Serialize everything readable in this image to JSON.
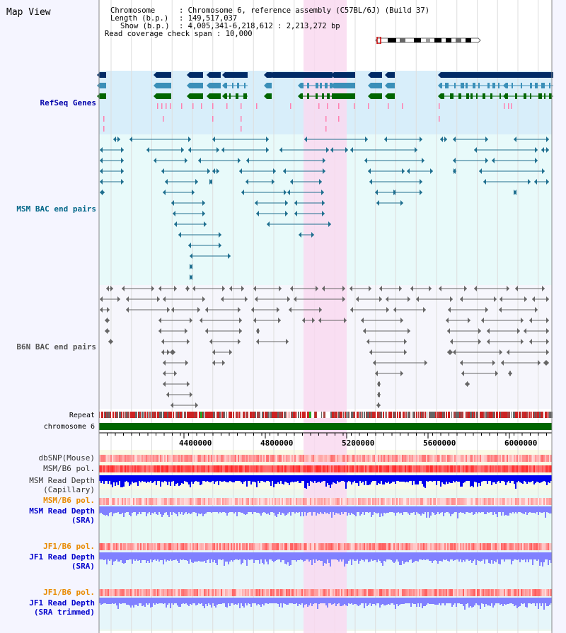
{
  "page": {
    "title": "Map View"
  },
  "info": {
    "chromosome_key": "Chromosome",
    "chromosome_val": "Chromosome 6, reference assembly (C57BL/6J) (Build 37)",
    "length_key": "Length (b.p.)",
    "length_val": "149,517,037",
    "show_key": "Show (b.p.)",
    "show_val": "4,005,341-6,218,612 : 2,213,272 bp",
    "coverage_key": "Read coverage check span",
    "coverage_val": "10,000"
  },
  "tracks": {
    "refseq": "RefSeq Genes",
    "msm_bac": "MSM BAC end pairs",
    "b6n_bac": "B6N BAC end pairs",
    "repeat": "Repeat",
    "chromosome": "chromosome 6",
    "dbsnp": "dbSNP(Mouse)",
    "msm_b6_pol": "MSM/B6 pol.",
    "msm_read_depth_cap_1": "MSM Read Depth",
    "msm_read_depth_cap_2": "(Capillary)",
    "msm_b6_pol_2": "MSM/B6 pol.",
    "msm_read_depth_sra_1": "MSM Read Depth",
    "msm_read_depth_sra_2": "(SRA)",
    "jf1_b6_pol_1": "JF1/B6 pol.",
    "jf1_read_depth_sra_1": "JF1 Read Depth",
    "jf1_read_depth_sra_2": "(SRA)",
    "jf1_b6_pol_2": "JF1/B6 pol.",
    "jf1_read_depth_trim_1": "JF1 Read Depth",
    "jf1_read_depth_trim_2": "(SRA trimmed)"
  },
  "axis": {
    "ticks": [
      "4400000",
      "4800000",
      "5200000",
      "5600000",
      "6000000"
    ],
    "start_bp": 4005341,
    "end_bp": 6218612
  },
  "colors": {
    "refseq_bg": "#d8eefa",
    "msm_bg": "#e8fafa",
    "highlight": "#f9d9f0",
    "gene_dark": "#002b66",
    "gene_mid": "#3a8fb8",
    "gene_green": "#006600",
    "pair_teal": "#1f6f8f",
    "pair_gray": "#666666",
    "pol_red": "#ff4040",
    "depth_blue": "#0000ee",
    "depth_lightblue": "#8080ff"
  }
}
